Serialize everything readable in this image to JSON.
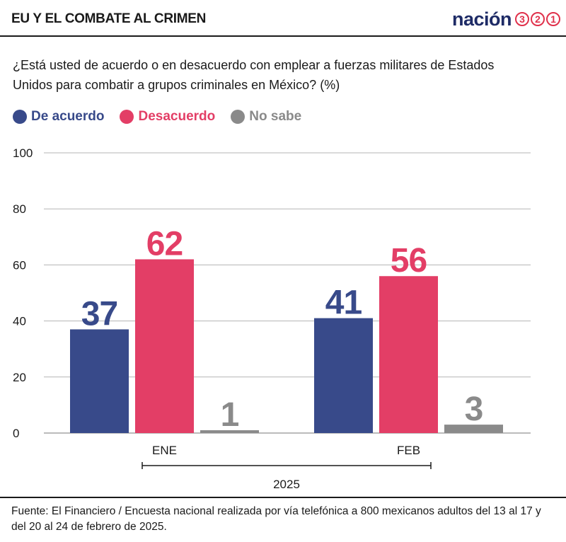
{
  "header": {
    "title": "EU Y EL COMBATE AL CRIMEN",
    "brand_word": "nación",
    "brand_digits": [
      "3",
      "2",
      "1"
    ]
  },
  "question": "¿Está usted de acuerdo o en desacuerdo con emplear a fuerzas militares de Estados Unidos para combatir a grupos criminales en México?  (%)",
  "colors": {
    "acuerdo": "#384a8a",
    "desacuerdo": "#e33e66",
    "no_sabe": "#8a8a8a",
    "brand_blue": "#1e2b66",
    "brand_red": "#e0314b"
  },
  "chart_data": {
    "type": "bar",
    "categories": [
      "ENE",
      "FEB"
    ],
    "series": [
      {
        "name": "De acuerdo",
        "values": [
          37,
          41
        ]
      },
      {
        "name": "Desacuerdo",
        "values": [
          62,
          56
        ]
      },
      {
        "name": "No sabe",
        "values": [
          1,
          3
        ]
      }
    ],
    "ylim": [
      0,
      100
    ],
    "yticks": [
      0,
      20,
      40,
      60,
      80,
      100
    ],
    "grid": true,
    "legend_position": "top-left",
    "group_label": "2025"
  },
  "source": "Fuente: El Financiero / Encuesta nacional realizada por vía telefónica a 800 mexicanos adultos del 13 al 17 y del 20 al 24 de febrero de 2025."
}
